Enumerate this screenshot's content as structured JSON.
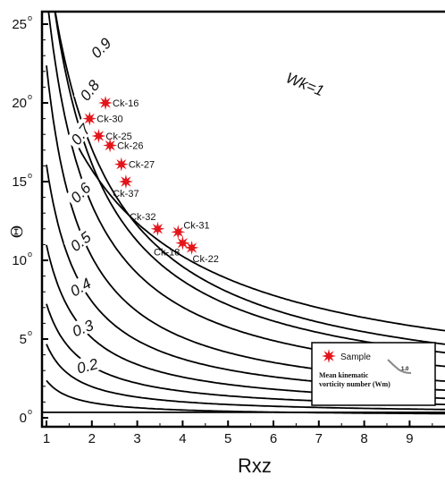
{
  "chart_data": {
    "type": "line",
    "xlabel": "Rxz",
    "ylabel": "Θ",
    "xlim": [
      1,
      9.9
    ],
    "ylim": [
      0,
      25
    ],
    "x_ticks": [
      "1",
      "2",
      "3",
      "4",
      "5",
      "6",
      "7",
      "8",
      "9"
    ],
    "y_ticks": [
      "0",
      "5",
      "10",
      "15",
      "20",
      "25"
    ],
    "degree_symbol": "o",
    "contour_labels": [
      {
        "text": "Wk=1",
        "x": 6.7,
        "y": 21.2,
        "rotate": 22
      },
      {
        "text": "0.9",
        "x": 2.2,
        "y": 23.5,
        "rotate": -45
      },
      {
        "text": "0.8",
        "x": 1.95,
        "y": 20.8,
        "rotate": -52
      },
      {
        "text": "0.7",
        "x": 1.75,
        "y": 18.0,
        "rotate": -52
      },
      {
        "text": "0.6",
        "x": 1.75,
        "y": 14.3,
        "rotate": -45
      },
      {
        "text": "0.5",
        "x": 1.75,
        "y": 11.2,
        "rotate": -38
      },
      {
        "text": "0.4",
        "x": 1.75,
        "y": 8.3,
        "rotate": -30
      },
      {
        "text": "0.3",
        "x": 1.8,
        "y": 5.7,
        "rotate": -22
      },
      {
        "text": "0.2",
        "x": 1.9,
        "y": 3.3,
        "rotate": -15
      }
    ],
    "series": [
      {
        "name": "Sample",
        "marker": "star",
        "color": "#e3151a",
        "points": [
          {
            "label": "Ck-16",
            "x": 2.3,
            "y": 20.0,
            "label_pos": "right"
          },
          {
            "label": "Ck-30",
            "x": 1.95,
            "y": 19.0,
            "label_pos": "right"
          },
          {
            "label": "Ck-25",
            "x": 2.15,
            "y": 17.9,
            "label_pos": "right"
          },
          {
            "label": "Ck-26",
            "x": 2.4,
            "y": 17.3,
            "label_pos": "right"
          },
          {
            "label": "Ck-27",
            "x": 2.65,
            "y": 16.1,
            "label_pos": "right"
          },
          {
            "label": "Ck-37",
            "x": 2.75,
            "y": 15.0,
            "label_pos": "below"
          },
          {
            "label": "Ck-32",
            "x": 3.45,
            "y": 12.0,
            "label_pos": "above-left"
          },
          {
            "label": "Ck-31",
            "x": 3.9,
            "y": 11.8,
            "label_pos": "above-right"
          },
          {
            "label": "Ck-18",
            "x": 4.0,
            "y": 11.1,
            "label_pos": "below-left"
          },
          {
            "label": "Ck-22",
            "x": 4.2,
            "y": 10.8,
            "label_pos": "below-right"
          }
        ]
      }
    ],
    "legend": {
      "position": "bottom-right",
      "sample_label": "Sample",
      "line_label_1": "Mean kinematic",
      "line_label_2": "vorticity number (Wm)",
      "line_value": "1.0"
    }
  }
}
